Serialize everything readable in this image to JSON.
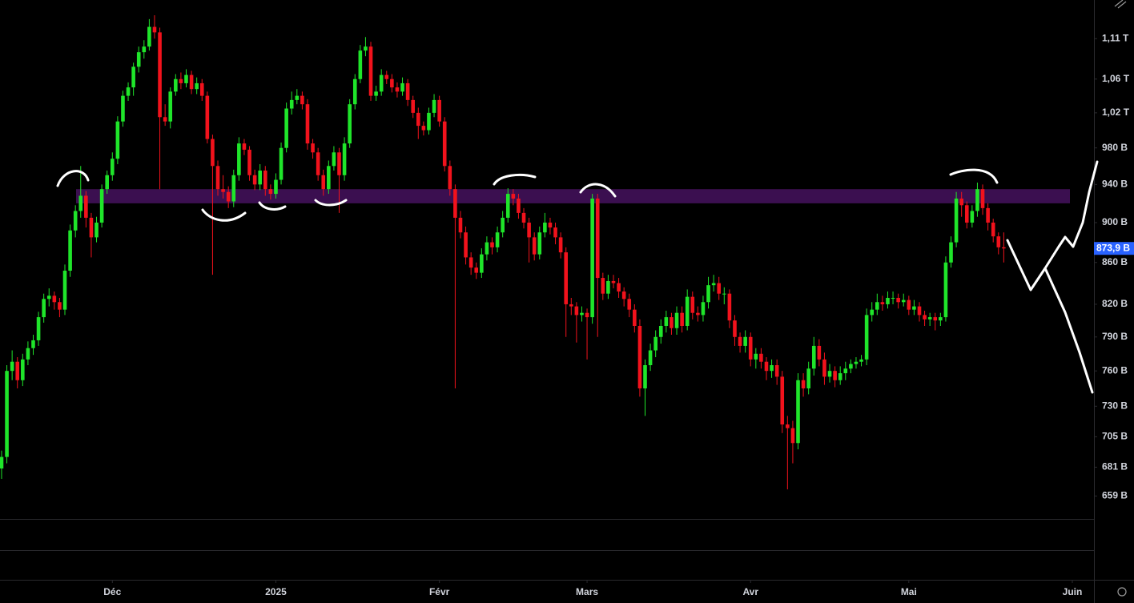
{
  "chart_data": {
    "type": "candlestick",
    "log": true,
    "up_color": "#1fe52a",
    "down_color": "#f2121c",
    "ylim": [
      642,
      1160
    ],
    "yticks": [
      {
        "value": 1110,
        "label": "1,11 T"
      },
      {
        "value": 1060,
        "label": "1,06 T"
      },
      {
        "value": 1020,
        "label": "1,02 T"
      },
      {
        "value": 980,
        "label": "980 B"
      },
      {
        "value": 940,
        "label": "940 B"
      },
      {
        "value": 900,
        "label": "900 B"
      },
      {
        "value": 860,
        "label": "860 B"
      },
      {
        "value": 820,
        "label": "820 B"
      },
      {
        "value": 790,
        "label": "790 B"
      },
      {
        "value": 760,
        "label": "760 B"
      },
      {
        "value": 730,
        "label": "730 B"
      },
      {
        "value": 705,
        "label": "705 B"
      },
      {
        "value": 681,
        "label": "681 B"
      },
      {
        "value": 659,
        "label": "659 B"
      }
    ],
    "xlim": [
      -0.3,
      207.1
    ],
    "xticks": [
      {
        "value": 21,
        "label": "Déc"
      },
      {
        "value": 52,
        "label": "2025"
      },
      {
        "value": 83,
        "label": "Févr"
      },
      {
        "value": 111,
        "label": "Mars"
      },
      {
        "value": 142,
        "label": "Avr"
      },
      {
        "value": 172,
        "label": "Mai"
      },
      {
        "value": 203,
        "label": "Juin"
      }
    ],
    "last_price": {
      "value": 873.9,
      "label": "873,9 B",
      "color": "#2962ff"
    },
    "zone": {
      "low": 920,
      "high": 935,
      "color": "#3b0f50"
    },
    "ohlc": [
      [
        680,
        694,
        672,
        689
      ],
      [
        689,
        765,
        684,
        760
      ],
      [
        760,
        778,
        752,
        768
      ],
      [
        768,
        772,
        745,
        752
      ],
      [
        752,
        775,
        747,
        770
      ],
      [
        770,
        786,
        765,
        780
      ],
      [
        780,
        792,
        774,
        787
      ],
      [
        787,
        813,
        782,
        808
      ],
      [
        808,
        830,
        803,
        825
      ],
      [
        825,
        835,
        818,
        828
      ],
      [
        828,
        832,
        815,
        822
      ],
      [
        822,
        826,
        808,
        815
      ],
      [
        815,
        858,
        810,
        852
      ],
      [
        852,
        898,
        846,
        892
      ],
      [
        892,
        918,
        885,
        912
      ],
      [
        912,
        960,
        905,
        928
      ],
      [
        928,
        933,
        895,
        905
      ],
      [
        905,
        910,
        865,
        885
      ],
      [
        885,
        906,
        880,
        900
      ],
      [
        900,
        940,
        895,
        935
      ],
      [
        935,
        955,
        930,
        950
      ],
      [
        950,
        975,
        944,
        968
      ],
      [
        968,
        1016,
        962,
        1010
      ],
      [
        1010,
        1046,
        1004,
        1040
      ],
      [
        1040,
        1056,
        1034,
        1050
      ],
      [
        1050,
        1080,
        1040,
        1075
      ],
      [
        1075,
        1100,
        1068,
        1093
      ],
      [
        1093,
        1108,
        1085,
        1100
      ],
      [
        1100,
        1135,
        1095,
        1125
      ],
      [
        1125,
        1140,
        1110,
        1118
      ],
      [
        1118,
        1124,
        935,
        1015
      ],
      [
        1015,
        1030,
        1005,
        1010
      ],
      [
        1010,
        1050,
        1002,
        1045
      ],
      [
        1045,
        1066,
        1040,
        1060
      ],
      [
        1060,
        1068,
        1048,
        1055
      ],
      [
        1055,
        1072,
        1050,
        1065
      ],
      [
        1065,
        1070,
        1042,
        1048
      ],
      [
        1048,
        1062,
        1042,
        1055
      ],
      [
        1055,
        1060,
        1034,
        1040
      ],
      [
        1040,
        1045,
        985,
        990
      ],
      [
        990,
        995,
        848,
        960
      ],
      [
        960,
        966,
        928,
        935
      ],
      [
        935,
        950,
        925,
        932
      ],
      [
        932,
        938,
        915,
        922
      ],
      [
        922,
        956,
        916,
        950
      ],
      [
        950,
        992,
        944,
        985
      ],
      [
        985,
        990,
        972,
        978
      ],
      [
        978,
        982,
        944,
        950
      ],
      [
        950,
        956,
        934,
        940
      ],
      [
        940,
        962,
        934,
        955
      ],
      [
        955,
        960,
        928,
        935
      ],
      [
        935,
        940,
        924,
        930
      ],
      [
        930,
        952,
        925,
        945
      ],
      [
        945,
        986,
        940,
        980
      ],
      [
        980,
        1032,
        975,
        1025
      ],
      [
        1025,
        1045,
        1018,
        1035
      ],
      [
        1035,
        1048,
        1030,
        1040
      ],
      [
        1040,
        1045,
        1024,
        1030
      ],
      [
        1030,
        1036,
        978,
        985
      ],
      [
        985,
        990,
        968,
        975
      ],
      [
        975,
        980,
        944,
        950
      ],
      [
        950,
        956,
        928,
        935
      ],
      [
        935,
        966,
        930,
        960
      ],
      [
        960,
        982,
        955,
        975
      ],
      [
        975,
        980,
        910,
        950
      ],
      [
        950,
        992,
        944,
        985
      ],
      [
        985,
        1036,
        980,
        1030
      ],
      [
        1030,
        1066,
        1024,
        1060
      ],
      [
        1060,
        1102,
        1055,
        1095
      ],
      [
        1095,
        1112,
        1088,
        1100
      ],
      [
        1100,
        1106,
        1034,
        1040
      ],
      [
        1040,
        1052,
        1034,
        1045
      ],
      [
        1045,
        1072,
        1040,
        1065
      ],
      [
        1065,
        1070,
        1054,
        1060
      ],
      [
        1060,
        1066,
        1044,
        1050
      ],
      [
        1050,
        1056,
        1038,
        1045
      ],
      [
        1045,
        1062,
        1040,
        1055
      ],
      [
        1055,
        1060,
        1028,
        1035
      ],
      [
        1035,
        1040,
        1014,
        1020
      ],
      [
        1020,
        1026,
        990,
        1005
      ],
      [
        1005,
        1010,
        994,
        1000
      ],
      [
        1000,
        1026,
        995,
        1020
      ],
      [
        1020,
        1042,
        1015,
        1035
      ],
      [
        1035,
        1040,
        1004,
        1010
      ],
      [
        1010,
        1015,
        954,
        960
      ],
      [
        960,
        966,
        928,
        935
      ],
      [
        935,
        940,
        745,
        905
      ],
      [
        905,
        912,
        884,
        890
      ],
      [
        890,
        896,
        858,
        865
      ],
      [
        865,
        870,
        848,
        855
      ],
      [
        855,
        860,
        844,
        850
      ],
      [
        850,
        874,
        845,
        868
      ],
      [
        868,
        886,
        862,
        880
      ],
      [
        880,
        885,
        868,
        875
      ],
      [
        875,
        896,
        870,
        890
      ],
      [
        890,
        912,
        885,
        905
      ],
      [
        905,
        936,
        900,
        930
      ],
      [
        930,
        935,
        918,
        925
      ],
      [
        925,
        930,
        904,
        910
      ],
      [
        910,
        915,
        894,
        900
      ],
      [
        900,
        905,
        860,
        885
      ],
      [
        885,
        890,
        862,
        868
      ],
      [
        868,
        896,
        863,
        890
      ],
      [
        890,
        910,
        885,
        900
      ],
      [
        900,
        905,
        888,
        895
      ],
      [
        895,
        900,
        878,
        885
      ],
      [
        885,
        890,
        864,
        870
      ],
      [
        870,
        875,
        790,
        820
      ],
      [
        820,
        826,
        810,
        818
      ],
      [
        818,
        822,
        785,
        810
      ],
      [
        810,
        818,
        804,
        812
      ],
      [
        812,
        816,
        770,
        808
      ],
      [
        808,
        930,
        802,
        925
      ],
      [
        925,
        930,
        790,
        845
      ],
      [
        845,
        850,
        824,
        830
      ],
      [
        830,
        848,
        825,
        842
      ],
      [
        842,
        848,
        835,
        840
      ],
      [
        840,
        845,
        826,
        832
      ],
      [
        832,
        836,
        818,
        825
      ],
      [
        825,
        830,
        808,
        815
      ],
      [
        815,
        820,
        794,
        800
      ],
      [
        800,
        806,
        738,
        745
      ],
      [
        745,
        770,
        722,
        765
      ],
      [
        765,
        784,
        760,
        778
      ],
      [
        778,
        796,
        772,
        790
      ],
      [
        790,
        806,
        784,
        800
      ],
      [
        800,
        814,
        794,
        808
      ],
      [
        808,
        812,
        792,
        798
      ],
      [
        798,
        818,
        792,
        812
      ],
      [
        812,
        818,
        794,
        800
      ],
      [
        800,
        834,
        796,
        827
      ],
      [
        827,
        832,
        806,
        812
      ],
      [
        812,
        818,
        804,
        810
      ],
      [
        810,
        828,
        804,
        822
      ],
      [
        822,
        846,
        816,
        838
      ],
      [
        838,
        848,
        832,
        840
      ],
      [
        840,
        846,
        824,
        830
      ],
      [
        830,
        836,
        820,
        830
      ],
      [
        830,
        834,
        798,
        805
      ],
      [
        805,
        810,
        782,
        790
      ],
      [
        790,
        794,
        776,
        782
      ],
      [
        782,
        796,
        776,
        790
      ],
      [
        790,
        794,
        764,
        770
      ],
      [
        770,
        780,
        762,
        775
      ],
      [
        775,
        780,
        762,
        768
      ],
      [
        768,
        772,
        752,
        760
      ],
      [
        760,
        770,
        754,
        765
      ],
      [
        765,
        770,
        748,
        755
      ],
      [
        755,
        760,
        708,
        715
      ],
      [
        715,
        722,
        664,
        712
      ],
      [
        712,
        718,
        684,
        700
      ],
      [
        700,
        758,
        695,
        752
      ],
      [
        752,
        758,
        738,
        745
      ],
      [
        745,
        768,
        740,
        762
      ],
      [
        762,
        790,
        756,
        782
      ],
      [
        782,
        788,
        764,
        770
      ],
      [
        770,
        776,
        748,
        755
      ],
      [
        755,
        766,
        750,
        760
      ],
      [
        760,
        764,
        746,
        752
      ],
      [
        752,
        764,
        748,
        758
      ],
      [
        758,
        768,
        752,
        762
      ],
      [
        762,
        770,
        758,
        766
      ],
      [
        766,
        772,
        762,
        768
      ],
      [
        768,
        774,
        764,
        770
      ],
      [
        770,
        816,
        765,
        810
      ],
      [
        810,
        822,
        804,
        815
      ],
      [
        815,
        830,
        810,
        822
      ],
      [
        822,
        828,
        814,
        820
      ],
      [
        820,
        832,
        816,
        826
      ],
      [
        826,
        832,
        820,
        826
      ],
      [
        826,
        830,
        816,
        822
      ],
      [
        822,
        830,
        818,
        824
      ],
      [
        824,
        828,
        810,
        815
      ],
      [
        815,
        824,
        810,
        818
      ],
      [
        818,
        822,
        804,
        810
      ],
      [
        810,
        814,
        800,
        806
      ],
      [
        806,
        812,
        800,
        808
      ],
      [
        808,
        812,
        796,
        805
      ],
      [
        805,
        812,
        800,
        808
      ],
      [
        808,
        866,
        804,
        860
      ],
      [
        860,
        886,
        855,
        880
      ],
      [
        880,
        932,
        875,
        925
      ],
      [
        925,
        932,
        906,
        918
      ],
      [
        918,
        922,
        894,
        900
      ],
      [
        900,
        918,
        895,
        912
      ],
      [
        912,
        942,
        906,
        935
      ],
      [
        935,
        940,
        908,
        915
      ],
      [
        915,
        920,
        892,
        900
      ],
      [
        900,
        904,
        880,
        886
      ],
      [
        886,
        890,
        868,
        875
      ],
      [
        875,
        890,
        860,
        873.9
      ]
    ]
  }
}
